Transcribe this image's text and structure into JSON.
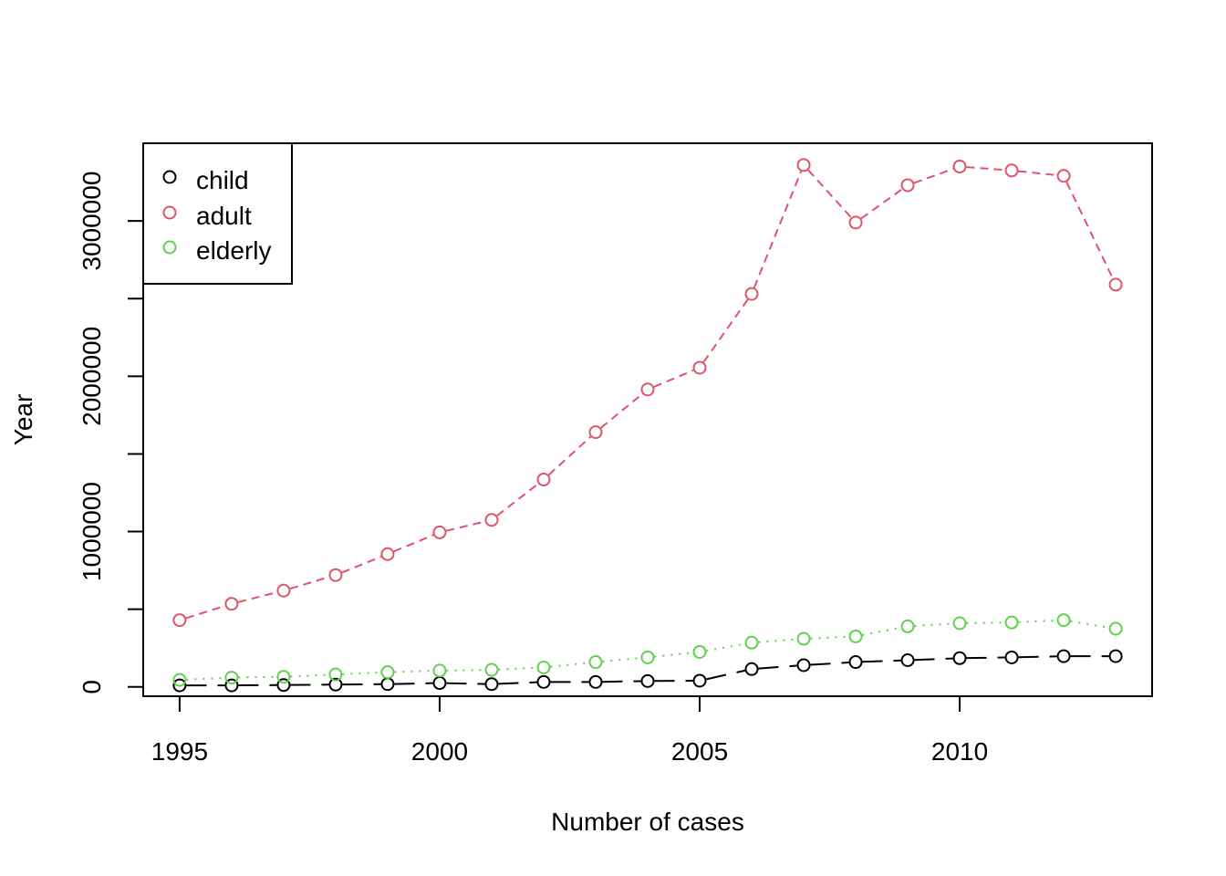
{
  "chart_data": {
    "type": "line",
    "title": "",
    "xlabel": "Number of cases",
    "ylabel": "Year",
    "x": [
      1995,
      1996,
      1997,
      1998,
      1999,
      2000,
      2001,
      2002,
      2003,
      2004,
      2005,
      2006,
      2007,
      2008,
      2009,
      2010,
      2011,
      2012,
      2013
    ],
    "xlim": [
      1994.3,
      2013.7
    ],
    "ylim": [
      -60000,
      3500000
    ],
    "x_ticks": [
      1995,
      2000,
      2005,
      2010
    ],
    "x_tick_labels": [
      "1995",
      "2000",
      "2005",
      "2010"
    ],
    "y_ticks": [
      0,
      500000,
      1000000,
      1500000,
      2000000,
      2500000,
      3000000
    ],
    "y_tick_labels": [
      "0",
      "",
      "1000000",
      "",
      "2000000",
      "",
      "3000000"
    ],
    "grid": false,
    "legend_position": "top-left",
    "series": [
      {
        "name": "child",
        "color": "#000000",
        "line_style": "longdash",
        "values": [
          10000,
          10000,
          12000,
          15000,
          18000,
          25000,
          18000,
          32000,
          32000,
          38000,
          40000,
          115000,
          140000,
          160000,
          172000,
          185000,
          190000,
          198000,
          198000
        ]
      },
      {
        "name": "adult",
        "color": "#df536b",
        "line_style": "dashed",
        "values": [
          430000,
          535000,
          620000,
          720000,
          855000,
          995000,
          1075000,
          1335000,
          1640000,
          1915000,
          2055000,
          2530000,
          3360000,
          2990000,
          3230000,
          3350000,
          3325000,
          3290000,
          2590000
        ]
      },
      {
        "name": "elderly",
        "color": "#61d04f",
        "line_style": "dotted",
        "values": [
          45000,
          60000,
          65000,
          80000,
          95000,
          105000,
          110000,
          125000,
          160000,
          190000,
          225000,
          285000,
          310000,
          325000,
          390000,
          410000,
          415000,
          430000,
          375000
        ]
      }
    ]
  }
}
